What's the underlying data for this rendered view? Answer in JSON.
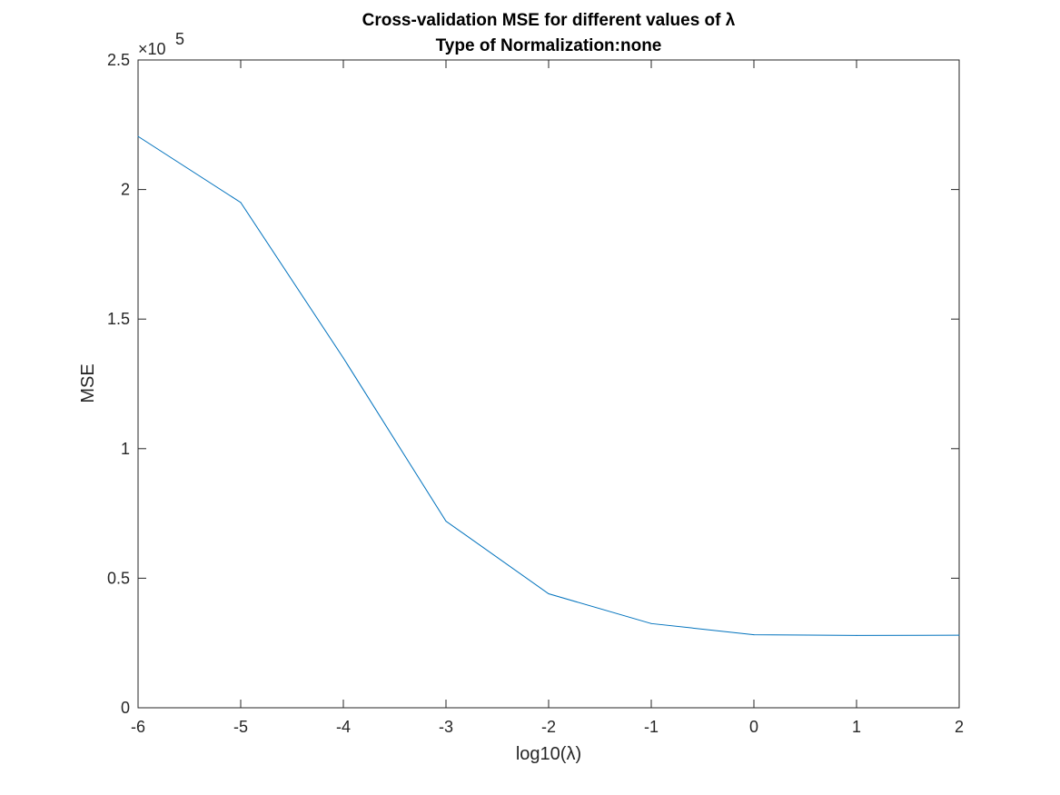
{
  "chart_data": {
    "type": "line",
    "title_line1": "Cross-validation MSE for different values of λ",
    "title_line2": "Type of Normalization:none",
    "xlabel": "log10(λ)",
    "ylabel": "MSE",
    "y_exponent_label": "×10",
    "y_exponent": "5",
    "xlim": [
      -6,
      2
    ],
    "ylim": [
      0,
      2.5
    ],
    "x_ticks": [
      "-6",
      "-5",
      "-4",
      "-3",
      "-2",
      "-1",
      "0",
      "1",
      "2"
    ],
    "y_ticks": [
      "0",
      "0.5",
      "1",
      "1.5",
      "2",
      "2.5"
    ],
    "grid": false,
    "series": [
      {
        "color": "#0072BD",
        "x": [
          -6,
          -5,
          -4,
          -3,
          -2,
          -1,
          0,
          1,
          2
        ],
        "y": [
          2.205,
          1.95,
          1.35,
          0.72,
          0.44,
          0.325,
          0.282,
          0.279,
          0.28
        ]
      }
    ]
  }
}
